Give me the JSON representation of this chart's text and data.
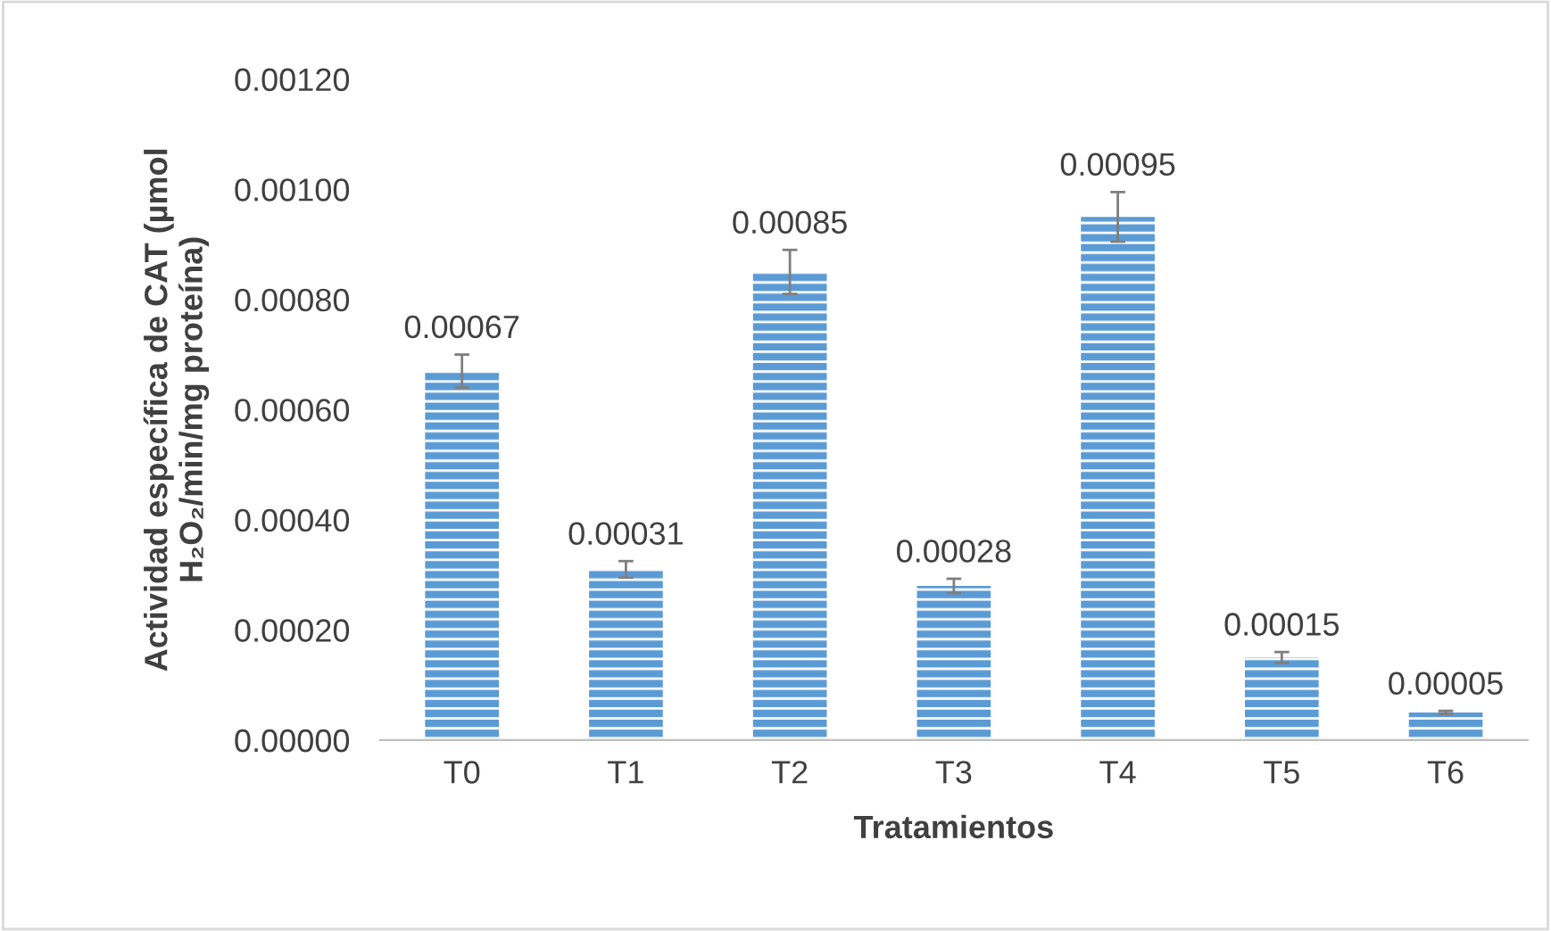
{
  "chart_data": {
    "type": "bar",
    "categories": [
      "T0",
      "T1",
      "T2",
      "T3",
      "T4",
      "T5",
      "T6"
    ],
    "values": [
      0.00067,
      0.00031,
      0.00085,
      0.00028,
      0.00095,
      0.00015,
      5e-05
    ],
    "value_labels": [
      "0.00067",
      "0.00031",
      "0.00085",
      "0.00028",
      "0.00095",
      "0.00015",
      "0.00005"
    ],
    "errors": [
      3e-05,
      1.5e-05,
      4e-05,
      1.3e-05,
      4.5e-05,
      1e-05,
      3e-06
    ],
    "color": "#5b9bd5",
    "xlabel": "Tratamientos",
    "ylabel": "Actividad específica de CAT (µmol\nH₂O₂/min/mg proteína)",
    "ylim": [
      0,
      0.0012
    ],
    "yticks": [
      {
        "value": 0,
        "label": "0.00000"
      },
      {
        "value": 0.0002,
        "label": "0.00020"
      },
      {
        "value": 0.0004,
        "label": "0.00040"
      },
      {
        "value": 0.0006,
        "label": "0.00060"
      },
      {
        "value": 0.0008,
        "label": "0.00080"
      },
      {
        "value": 0.001,
        "label": "0.00100"
      },
      {
        "value": 0.0012,
        "label": "0.00120"
      }
    ],
    "grid": false,
    "legend": false
  }
}
